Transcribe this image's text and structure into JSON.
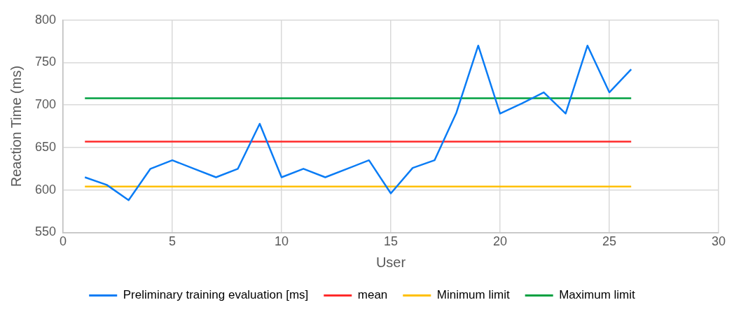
{
  "chart_data": {
    "type": "line",
    "xlabel": "User",
    "ylabel": "Reaction Time (ms)",
    "xlim": [
      0,
      30
    ],
    "xticks": [
      0,
      5,
      10,
      15,
      20,
      25,
      30
    ],
    "ylim": [
      550,
      800
    ],
    "yticks": [
      550,
      600,
      650,
      700,
      750,
      800
    ],
    "grid": true,
    "legend": "bottom",
    "marker": "none",
    "series": [
      {
        "name": "Preliminary training evaluation [ms]",
        "color": "#0a7cf5",
        "x": [
          1,
          2,
          3,
          4,
          5,
          6,
          7,
          8,
          9,
          10,
          11,
          12,
          13,
          14,
          15,
          16,
          17,
          18,
          19,
          20,
          21,
          22,
          23,
          24,
          25,
          26
        ],
        "values": [
          615,
          606,
          588,
          625,
          635,
          625,
          615,
          625,
          678,
          615,
          625,
          615,
          625,
          635,
          596,
          626,
          635,
          691,
          770,
          690,
          702,
          715,
          690,
          770,
          715,
          742
        ]
      },
      {
        "name": "mean",
        "color": "#ff2a2a",
        "x": [
          1,
          26
        ],
        "values": [
          657,
          657
        ]
      },
      {
        "name": "Minimum limit",
        "color": "#ffc000",
        "x": [
          1,
          26
        ],
        "values": [
          604,
          604
        ]
      },
      {
        "name": "Maximum limit",
        "color": "#00a040",
        "x": [
          1,
          26
        ],
        "values": [
          708,
          708
        ]
      }
    ]
  }
}
